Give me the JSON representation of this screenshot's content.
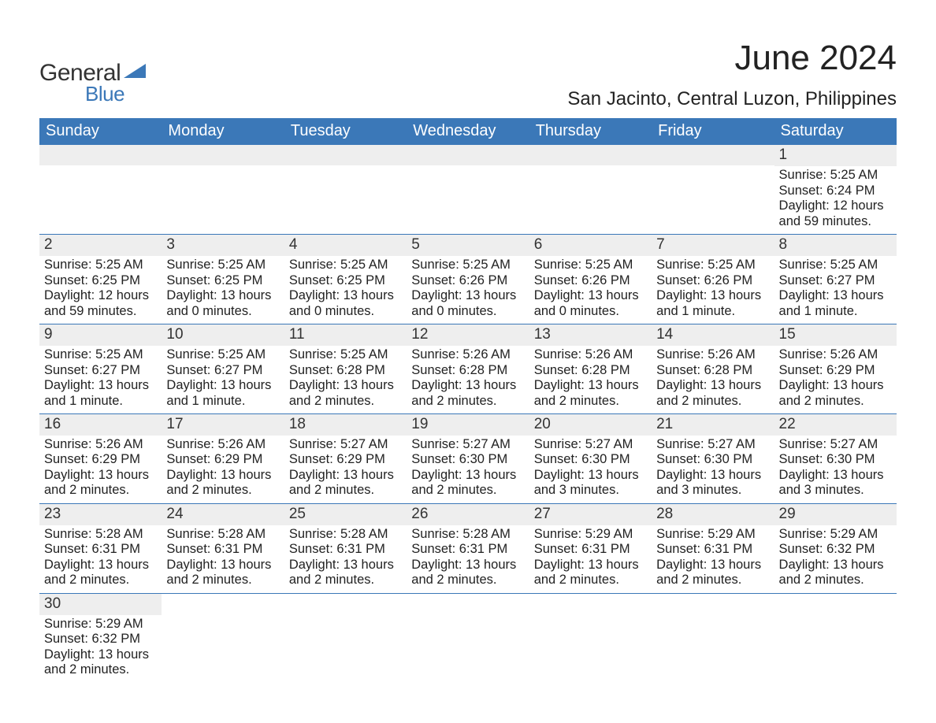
{
  "brand": {
    "word1": "General",
    "word2": "Blue",
    "word1_color": "#333333",
    "word2_color": "#3b78b8",
    "triangle_color": "#3b78b8"
  },
  "title": {
    "month": "June 2024",
    "location": "San Jacinto, Central Luzon, Philippines"
  },
  "colors": {
    "header_bg": "#3b78b8",
    "header_text": "#ffffff",
    "daynum_bg": "#eeeeee",
    "row_border": "#3b78b8",
    "body_text": "#222222"
  },
  "day_names": [
    "Sunday",
    "Monday",
    "Tuesday",
    "Wednesday",
    "Thursday",
    "Friday",
    "Saturday"
  ],
  "weeks": [
    [
      {
        "n": "",
        "sunrise": "",
        "sunset": "",
        "daylight": ""
      },
      {
        "n": "",
        "sunrise": "",
        "sunset": "",
        "daylight": ""
      },
      {
        "n": "",
        "sunrise": "",
        "sunset": "",
        "daylight": ""
      },
      {
        "n": "",
        "sunrise": "",
        "sunset": "",
        "daylight": ""
      },
      {
        "n": "",
        "sunrise": "",
        "sunset": "",
        "daylight": ""
      },
      {
        "n": "",
        "sunrise": "",
        "sunset": "",
        "daylight": ""
      },
      {
        "n": "1",
        "sunrise": "Sunrise: 5:25 AM",
        "sunset": "Sunset: 6:24 PM",
        "daylight": "Daylight: 12 hours and 59 minutes."
      }
    ],
    [
      {
        "n": "2",
        "sunrise": "Sunrise: 5:25 AM",
        "sunset": "Sunset: 6:25 PM",
        "daylight": "Daylight: 12 hours and 59 minutes."
      },
      {
        "n": "3",
        "sunrise": "Sunrise: 5:25 AM",
        "sunset": "Sunset: 6:25 PM",
        "daylight": "Daylight: 13 hours and 0 minutes."
      },
      {
        "n": "4",
        "sunrise": "Sunrise: 5:25 AM",
        "sunset": "Sunset: 6:25 PM",
        "daylight": "Daylight: 13 hours and 0 minutes."
      },
      {
        "n": "5",
        "sunrise": "Sunrise: 5:25 AM",
        "sunset": "Sunset: 6:26 PM",
        "daylight": "Daylight: 13 hours and 0 minutes."
      },
      {
        "n": "6",
        "sunrise": "Sunrise: 5:25 AM",
        "sunset": "Sunset: 6:26 PM",
        "daylight": "Daylight: 13 hours and 0 minutes."
      },
      {
        "n": "7",
        "sunrise": "Sunrise: 5:25 AM",
        "sunset": "Sunset: 6:26 PM",
        "daylight": "Daylight: 13 hours and 1 minute."
      },
      {
        "n": "8",
        "sunrise": "Sunrise: 5:25 AM",
        "sunset": "Sunset: 6:27 PM",
        "daylight": "Daylight: 13 hours and 1 minute."
      }
    ],
    [
      {
        "n": "9",
        "sunrise": "Sunrise: 5:25 AM",
        "sunset": "Sunset: 6:27 PM",
        "daylight": "Daylight: 13 hours and 1 minute."
      },
      {
        "n": "10",
        "sunrise": "Sunrise: 5:25 AM",
        "sunset": "Sunset: 6:27 PM",
        "daylight": "Daylight: 13 hours and 1 minute."
      },
      {
        "n": "11",
        "sunrise": "Sunrise: 5:25 AM",
        "sunset": "Sunset: 6:28 PM",
        "daylight": "Daylight: 13 hours and 2 minutes."
      },
      {
        "n": "12",
        "sunrise": "Sunrise: 5:26 AM",
        "sunset": "Sunset: 6:28 PM",
        "daylight": "Daylight: 13 hours and 2 minutes."
      },
      {
        "n": "13",
        "sunrise": "Sunrise: 5:26 AM",
        "sunset": "Sunset: 6:28 PM",
        "daylight": "Daylight: 13 hours and 2 minutes."
      },
      {
        "n": "14",
        "sunrise": "Sunrise: 5:26 AM",
        "sunset": "Sunset: 6:28 PM",
        "daylight": "Daylight: 13 hours and 2 minutes."
      },
      {
        "n": "15",
        "sunrise": "Sunrise: 5:26 AM",
        "sunset": "Sunset: 6:29 PM",
        "daylight": "Daylight: 13 hours and 2 minutes."
      }
    ],
    [
      {
        "n": "16",
        "sunrise": "Sunrise: 5:26 AM",
        "sunset": "Sunset: 6:29 PM",
        "daylight": "Daylight: 13 hours and 2 minutes."
      },
      {
        "n": "17",
        "sunrise": "Sunrise: 5:26 AM",
        "sunset": "Sunset: 6:29 PM",
        "daylight": "Daylight: 13 hours and 2 minutes."
      },
      {
        "n": "18",
        "sunrise": "Sunrise: 5:27 AM",
        "sunset": "Sunset: 6:29 PM",
        "daylight": "Daylight: 13 hours and 2 minutes."
      },
      {
        "n": "19",
        "sunrise": "Sunrise: 5:27 AM",
        "sunset": "Sunset: 6:30 PM",
        "daylight": "Daylight: 13 hours and 2 minutes."
      },
      {
        "n": "20",
        "sunrise": "Sunrise: 5:27 AM",
        "sunset": "Sunset: 6:30 PM",
        "daylight": "Daylight: 13 hours and 3 minutes."
      },
      {
        "n": "21",
        "sunrise": "Sunrise: 5:27 AM",
        "sunset": "Sunset: 6:30 PM",
        "daylight": "Daylight: 13 hours and 3 minutes."
      },
      {
        "n": "22",
        "sunrise": "Sunrise: 5:27 AM",
        "sunset": "Sunset: 6:30 PM",
        "daylight": "Daylight: 13 hours and 3 minutes."
      }
    ],
    [
      {
        "n": "23",
        "sunrise": "Sunrise: 5:28 AM",
        "sunset": "Sunset: 6:31 PM",
        "daylight": "Daylight: 13 hours and 2 minutes."
      },
      {
        "n": "24",
        "sunrise": "Sunrise: 5:28 AM",
        "sunset": "Sunset: 6:31 PM",
        "daylight": "Daylight: 13 hours and 2 minutes."
      },
      {
        "n": "25",
        "sunrise": "Sunrise: 5:28 AM",
        "sunset": "Sunset: 6:31 PM",
        "daylight": "Daylight: 13 hours and 2 minutes."
      },
      {
        "n": "26",
        "sunrise": "Sunrise: 5:28 AM",
        "sunset": "Sunset: 6:31 PM",
        "daylight": "Daylight: 13 hours and 2 minutes."
      },
      {
        "n": "27",
        "sunrise": "Sunrise: 5:29 AM",
        "sunset": "Sunset: 6:31 PM",
        "daylight": "Daylight: 13 hours and 2 minutes."
      },
      {
        "n": "28",
        "sunrise": "Sunrise: 5:29 AM",
        "sunset": "Sunset: 6:31 PM",
        "daylight": "Daylight: 13 hours and 2 minutes."
      },
      {
        "n": "29",
        "sunrise": "Sunrise: 5:29 AM",
        "sunset": "Sunset: 6:32 PM",
        "daylight": "Daylight: 13 hours and 2 minutes."
      }
    ],
    [
      {
        "n": "30",
        "sunrise": "Sunrise: 5:29 AM",
        "sunset": "Sunset: 6:32 PM",
        "daylight": "Daylight: 13 hours and 2 minutes."
      },
      {
        "n": "",
        "sunrise": "",
        "sunset": "",
        "daylight": ""
      },
      {
        "n": "",
        "sunrise": "",
        "sunset": "",
        "daylight": ""
      },
      {
        "n": "",
        "sunrise": "",
        "sunset": "",
        "daylight": ""
      },
      {
        "n": "",
        "sunrise": "",
        "sunset": "",
        "daylight": ""
      },
      {
        "n": "",
        "sunrise": "",
        "sunset": "",
        "daylight": ""
      },
      {
        "n": "",
        "sunrise": "",
        "sunset": "",
        "daylight": ""
      }
    ]
  ]
}
